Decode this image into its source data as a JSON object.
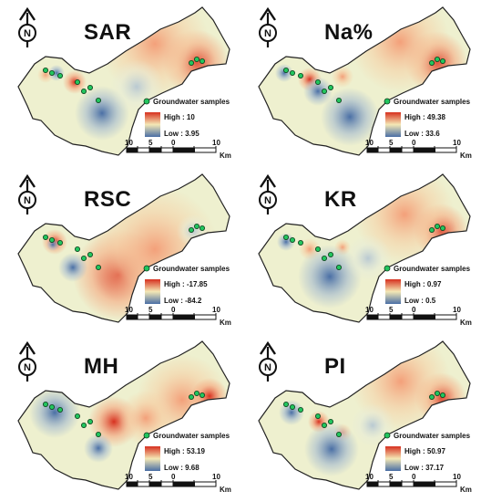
{
  "north_label": "N",
  "legend_samples_label": "Groundwater samples",
  "scale_ticks": [
    "10",
    "5",
    "0",
    "10"
  ],
  "scale_unit": "Km",
  "colors": {
    "high": "#d7301f",
    "mid": "#f4e8b5",
    "low": "#4a6fa5",
    "land": "#eef0cf",
    "sample_fill": "#22c55e"
  },
  "panels": [
    {
      "title": "SAR",
      "high_label": "High : 10",
      "low_label": "Low : 3.95"
    },
    {
      "title": "Na%",
      "high_label": "High : 49.38",
      "low_label": "Low : 33.6"
    },
    {
      "title": "RSC",
      "high_label": "High : -17.85",
      "low_label": "Low : -84.2"
    },
    {
      "title": "KR",
      "high_label": "High : 0.97",
      "low_label": "Low : 0.5"
    },
    {
      "title": "MH",
      "high_label": "High : 53.19",
      "low_label": "Low : 9.68"
    },
    {
      "title": "PI",
      "high_label": "High : 50.97",
      "low_label": "Low : 37.17"
    }
  ]
}
